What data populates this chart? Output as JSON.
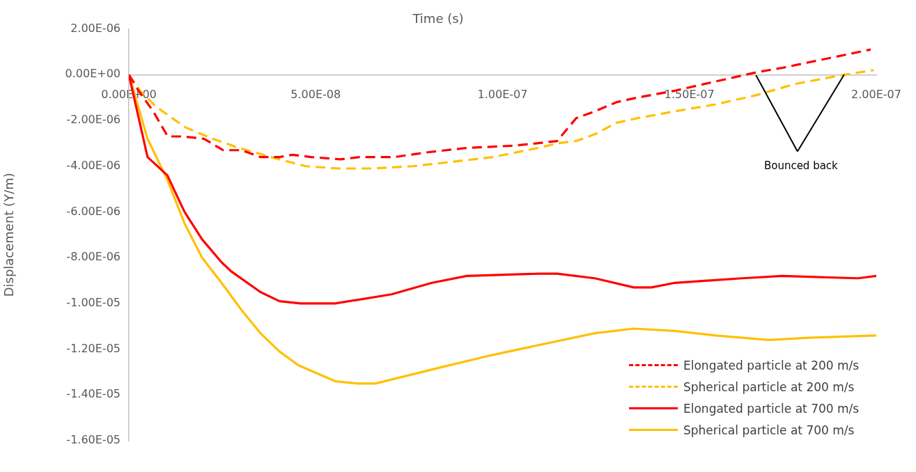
{
  "chart_data": {
    "type": "line",
    "xlabel": "Time (s)",
    "ylabel": "Displacement (Y/m)",
    "xlim": [
      0,
      2e-07
    ],
    "xticks": [
      {
        "value": 0,
        "label": "0.00E+00"
      },
      {
        "value": 5e-08,
        "label": "5.00E-08"
      },
      {
        "value": 1e-07,
        "label": "1.00E-07"
      },
      {
        "value": 1.5e-07,
        "label": "1.50E-07"
      },
      {
        "value": 2e-07,
        "label": "2.00E-07"
      }
    ],
    "ylim": [
      -1.6e-05,
      2e-06
    ],
    "yticks": [
      {
        "value": 2e-06,
        "label": "2.00E-06"
      },
      {
        "value": 0,
        "label": "0.00E+00"
      },
      {
        "value": -2e-06,
        "label": "-2.00E-06"
      },
      {
        "value": -4e-06,
        "label": "-4.00E-06"
      },
      {
        "value": -6e-06,
        "label": "-6.00E-06"
      },
      {
        "value": -8e-06,
        "label": "-8.00E-06"
      },
      {
        "value": -1e-05,
        "label": "-1.00E-05"
      },
      {
        "value": -1.2e-05,
        "label": "-1.20E-05"
      },
      {
        "value": -1.4e-05,
        "label": "-1.40E-05"
      },
      {
        "value": -1.6e-05,
        "label": "-1.60E-05"
      }
    ],
    "grid": false,
    "legend": "bottom right",
    "annotations": [
      {
        "text": "Bounced back",
        "x": 1.914e-07,
        "y": 0
      }
    ],
    "series": [
      {
        "name": "Elongated particle at 200 m/s",
        "color": "#ff0000",
        "line_style": "dashed",
        "x": [
          0,
          2.6e-09,
          6.5e-09,
          1.04e-08,
          1.44e-08,
          2.01e-08,
          2.52e-08,
          3.02e-08,
          3.52e-08,
          4.03e-08,
          4.38e-08,
          4.88e-08,
          5.67e-08,
          6.17e-08,
          7.1e-08,
          7.96e-08,
          9.04e-08,
          1.033e-07,
          1.146e-07,
          1.197e-07,
          1.247e-07,
          1.305e-07,
          1.361e-07,
          1.461e-07,
          1.569e-07,
          1.678e-07,
          1.748e-07,
          1.985e-07
        ],
        "values": [
          0,
          -7e-07,
          -1.6e-06,
          -2.7e-06,
          -2.7e-06,
          -2.8e-06,
          -3.3e-06,
          -3.3e-06,
          -3.6e-06,
          -3.6e-06,
          -3.5e-06,
          -3.6e-06,
          -3.7e-06,
          -3.6e-06,
          -3.6e-06,
          -3.4e-06,
          -3.2e-06,
          -3.1e-06,
          -2.9e-06,
          -1.9e-06,
          -1.6e-06,
          -1.2e-06,
          -1e-06,
          -7e-07,
          -3e-07,
          1e-07,
          3e-07,
          1.1e-06
        ]
      },
      {
        "name": "Spherical particle at 200 m/s",
        "color": "#ffc000",
        "line_style": "dashed",
        "x": [
          0,
          3e-09,
          7.3e-09,
          1.51e-08,
          2.24e-08,
          2.95e-08,
          4.03e-08,
          4.73e-08,
          5.59e-08,
          6.52e-08,
          7.61e-08,
          8.69e-08,
          9.75e-08,
          1.096e-07,
          1.146e-07,
          1.197e-07,
          1.247e-07,
          1.305e-07,
          1.361e-07,
          1.461e-07,
          1.569e-07,
          1.678e-07,
          1.784e-07,
          1.914e-07,
          1.993e-07
        ],
        "values": [
          0,
          -7e-07,
          -1.4e-06,
          -2.3e-06,
          -2.8e-06,
          -3.2e-06,
          -3.7e-06,
          -4e-06,
          -4.1e-06,
          -4.1e-06,
          -4e-06,
          -3.8e-06,
          -3.6e-06,
          -3.2e-06,
          -3e-06,
          -2.9e-06,
          -2.6e-06,
          -2.1e-06,
          -1.9e-06,
          -1.6e-06,
          -1.3e-06,
          -9e-07,
          -4e-07,
          0,
          2e-07
        ]
      },
      {
        "name": "Elongated particle at 700 m/s",
        "color": "#ff0000",
        "line_style": "solid",
        "x": [
          0,
          5e-09,
          1.03e-08,
          1.49e-08,
          1.96e-08,
          2.48e-08,
          2.74e-08,
          3.52e-08,
          4.03e-08,
          4.59e-08,
          5.52e-08,
          7.03e-08,
          8.11e-08,
          9.04e-08,
          1.096e-07,
          1.146e-07,
          1.247e-07,
          1.351e-07,
          1.398e-07,
          1.461e-07,
          1.64e-07,
          1.748e-07,
          1.95e-07,
          2e-07
        ],
        "values": [
          0,
          -3.6e-06,
          -4.4e-06,
          -6e-06,
          -7.2e-06,
          -8.2e-06,
          -8.6e-06,
          -9.5e-06,
          -9.9e-06,
          -1e-05,
          -1e-05,
          -9.6e-06,
          -9.1e-06,
          -8.8e-06,
          -8.7e-06,
          -8.7e-06,
          -8.9e-06,
          -9.3e-06,
          -9.3e-06,
          -9.1e-06,
          -8.9e-06,
          -8.8e-06,
          -8.9e-06,
          -8.8e-06
        ]
      },
      {
        "name": "Spherical particle at 700 m/s",
        "color": "#ffc000",
        "line_style": "solid",
        "x": [
          0,
          5e-09,
          1.03e-08,
          1.49e-08,
          1.96e-08,
          2.48e-08,
          3.02e-08,
          3.52e-08,
          4.03e-08,
          4.53e-08,
          5.52e-08,
          6.1e-08,
          6.6e-08,
          8.33e-08,
          9.6e-08,
          1.103e-07,
          1.247e-07,
          1.351e-07,
          1.461e-07,
          1.569e-07,
          1.713e-07,
          1.821e-07,
          2e-07
        ],
        "values": [
          0,
          -2.8e-06,
          -4.6e-06,
          -6.5e-06,
          -8e-06,
          -9.1e-06,
          -1.03e-05,
          -1.13e-05,
          -1.21e-05,
          -1.27e-05,
          -1.34e-05,
          -1.35e-05,
          -1.35e-05,
          -1.28e-05,
          -1.23e-05,
          -1.18e-05,
          -1.13e-05,
          -1.11e-05,
          -1.12e-05,
          -1.14e-05,
          -1.16e-05,
          -1.15e-05,
          -1.14e-05
        ]
      }
    ]
  }
}
